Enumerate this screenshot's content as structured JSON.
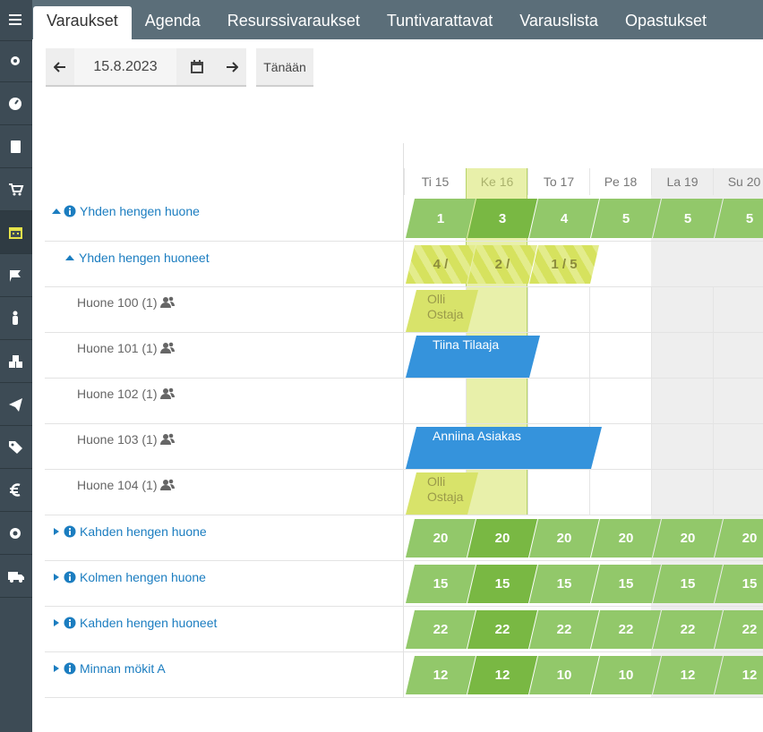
{
  "tabs": [
    "Varaukset",
    "Agenda",
    "Resurssivaraukset",
    "Tuntivarattavat",
    "Varauslista",
    "Opastukset"
  ],
  "active_tab": 0,
  "toolbar": {
    "date": "15.8.2023",
    "today_button": "Tänään"
  },
  "days": [
    "Ti 15",
    "Ke 16",
    "To 17",
    "Pe 18",
    "La 19",
    "Su 20"
  ],
  "highlight_column": 1,
  "weekend_columns": [
    4,
    5
  ],
  "groups": [
    {
      "label": "Yhden hengen huone",
      "counts": [
        1,
        3,
        4,
        5,
        5,
        5
      ],
      "subgroups": [
        {
          "label": "Yhden hengen huoneet",
          "counts": [
            "4 /",
            "2 /",
            "1 / 5"
          ],
          "rooms": [
            {
              "label": "Huone 100 (1)",
              "booking": {
                "guest": "Olli Ostaja",
                "nights": 1,
                "color": "#d8e36a"
              }
            },
            {
              "label": "Huone 101 (1)",
              "booking": {
                "guest": "Tiina Tilaaja",
                "nights": 2,
                "color": "#3593dc"
              }
            },
            {
              "label": "Huone 102 (1)"
            },
            {
              "label": "Huone 103 (1)",
              "booking": {
                "guest": "Anniina Asiakas",
                "nights": 3,
                "color": "#3593dc"
              }
            },
            {
              "label": "Huone 104 (1)",
              "booking": {
                "guest": "Olli Ostaja",
                "nights": 1,
                "color": "#d8e36a"
              }
            }
          ]
        }
      ]
    },
    {
      "label": "Kahden hengen huone",
      "counts": [
        20,
        20,
        20,
        20,
        20,
        20
      ]
    },
    {
      "label": "Kolmen hengen huone",
      "counts": [
        15,
        15,
        15,
        15,
        15,
        15
      ]
    },
    {
      "label": "Kahden hengen huoneet",
      "counts": [
        22,
        22,
        22,
        22,
        22,
        22
      ]
    },
    {
      "label": "Minnan mökit A",
      "counts": [
        12,
        12,
        10,
        10,
        12,
        12
      ]
    }
  ]
}
